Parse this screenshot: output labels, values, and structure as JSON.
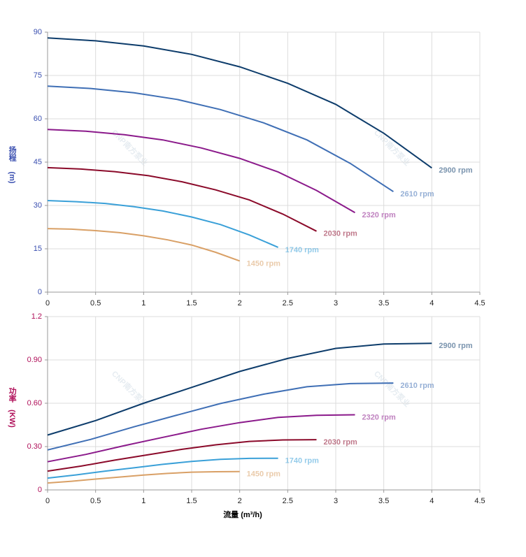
{
  "chart_data": [
    {
      "type": "line",
      "y_label": "扬程",
      "y_unit": "(m)",
      "axis_color": "#3a4fb0",
      "watermark": "CNP南方泵业",
      "grid": true,
      "xlim": [
        0,
        4.5
      ],
      "xticks": [
        0,
        0.5,
        1,
        1.5,
        2,
        2.5,
        3,
        3.5,
        4,
        4.5
      ],
      "ylim": [
        0,
        90
      ],
      "yticks": [
        0,
        15,
        30,
        45,
        60,
        75,
        90
      ],
      "series": [
        {
          "name": "2900 rpm",
          "color": "#0d3c6b",
          "x": [
            0,
            0.5,
            1,
            1.5,
            2,
            2.5,
            3,
            3.5,
            4
          ],
          "values": [
            88,
            87,
            85.2,
            82.3,
            78,
            72.3,
            65,
            55,
            43
          ]
        },
        {
          "name": "2610 rpm",
          "color": "#3f6fb5",
          "x": [
            0,
            0.45,
            0.9,
            1.35,
            1.8,
            2.25,
            2.7,
            3.15,
            3.6
          ],
          "values": [
            71.3,
            70.5,
            69.0,
            66.7,
            63.2,
            58.6,
            52.7,
            44.6,
            34.8
          ]
        },
        {
          "name": "2320 rpm",
          "color": "#8b1a8b",
          "x": [
            0,
            0.4,
            0.8,
            1.2,
            1.6,
            2,
            2.4,
            2.8,
            3.2
          ],
          "values": [
            56.3,
            55.7,
            54.5,
            52.7,
            49.9,
            46.3,
            41.6,
            35.2,
            27.5
          ]
        },
        {
          "name": "2030 rpm",
          "color": "#8b0a2a",
          "x": [
            0,
            0.35,
            0.7,
            1.05,
            1.4,
            1.75,
            2.1,
            2.45,
            2.8
          ],
          "values": [
            43.1,
            42.6,
            41.7,
            40.3,
            38.2,
            35.4,
            31.9,
            27.0,
            21.1
          ]
        },
        {
          "name": "1740 rpm",
          "color": "#3aa0d8",
          "x": [
            0,
            0.3,
            0.6,
            0.9,
            1.2,
            1.5,
            1.8,
            2.1,
            2.4
          ],
          "values": [
            31.7,
            31.3,
            30.7,
            29.6,
            28.1,
            26.0,
            23.4,
            19.8,
            15.5
          ]
        },
        {
          "name": "1450 rpm",
          "color": "#d9a066",
          "x": [
            0,
            0.25,
            0.5,
            0.75,
            1,
            1.25,
            1.5,
            1.75,
            2
          ],
          "values": [
            22,
            21.8,
            21.3,
            20.6,
            19.5,
            18.1,
            16.3,
            13.8,
            10.8
          ]
        }
      ]
    },
    {
      "type": "line",
      "y_label": "功率",
      "y_unit": "(KW)",
      "x_label": "流量 (m³/h)",
      "axis_color": "#b0105a",
      "watermark": "CNP南方泵业",
      "grid": true,
      "xlim": [
        0,
        4.5
      ],
      "xticks": [
        0,
        0.5,
        1,
        1.5,
        2,
        2.5,
        3,
        3.5,
        4,
        4.5
      ],
      "ylim": [
        0,
        1.2
      ],
      "yticks": [
        0,
        {
          "value": 0.3,
          "label": "0.30"
        },
        {
          "value": 0.6,
          "label": "0.60"
        },
        {
          "value": 0.9,
          "label": "0.90"
        },
        1.2
      ],
      "series": [
        {
          "name": "2900 rpm",
          "color": "#0d3c6b",
          "x": [
            0,
            0.5,
            1,
            1.5,
            2,
            2.5,
            3,
            3.5,
            4
          ],
          "values": [
            0.38,
            0.48,
            0.6,
            0.71,
            0.82,
            0.91,
            0.98,
            1.01,
            1.015
          ]
        },
        {
          "name": "2610 rpm",
          "color": "#3f6fb5",
          "x": [
            0,
            0.45,
            0.9,
            1.35,
            1.8,
            2.25,
            2.7,
            3.15,
            3.6
          ],
          "values": [
            0.277,
            0.35,
            0.437,
            0.518,
            0.598,
            0.663,
            0.714,
            0.736,
            0.74
          ]
        },
        {
          "name": "2320 rpm",
          "color": "#8b1a8b",
          "x": [
            0,
            0.4,
            0.8,
            1.2,
            1.6,
            2,
            2.4,
            2.8,
            3.2
          ],
          "values": [
            0.195,
            0.246,
            0.307,
            0.364,
            0.42,
            0.466,
            0.502,
            0.517,
            0.52
          ]
        },
        {
          "name": "2030 rpm",
          "color": "#8b0a2a",
          "x": [
            0,
            0.35,
            0.7,
            1.05,
            1.4,
            1.75,
            2.1,
            2.45,
            2.8
          ],
          "values": [
            0.13,
            0.165,
            0.206,
            0.244,
            0.281,
            0.312,
            0.336,
            0.346,
            0.348
          ]
        },
        {
          "name": "1740 rpm",
          "color": "#3aa0d8",
          "x": [
            0,
            0.3,
            0.6,
            0.9,
            1.2,
            1.5,
            1.8,
            2.1,
            2.4
          ],
          "values": [
            0.082,
            0.104,
            0.13,
            0.153,
            0.177,
            0.197,
            0.212,
            0.218,
            0.219
          ]
        },
        {
          "name": "1450 rpm",
          "color": "#d9a066",
          "x": [
            0,
            0.25,
            0.5,
            0.75,
            1,
            1.25,
            1.5,
            1.75,
            2
          ],
          "values": [
            0.048,
            0.06,
            0.075,
            0.089,
            0.103,
            0.114,
            0.123,
            0.126,
            0.127
          ]
        }
      ]
    }
  ]
}
